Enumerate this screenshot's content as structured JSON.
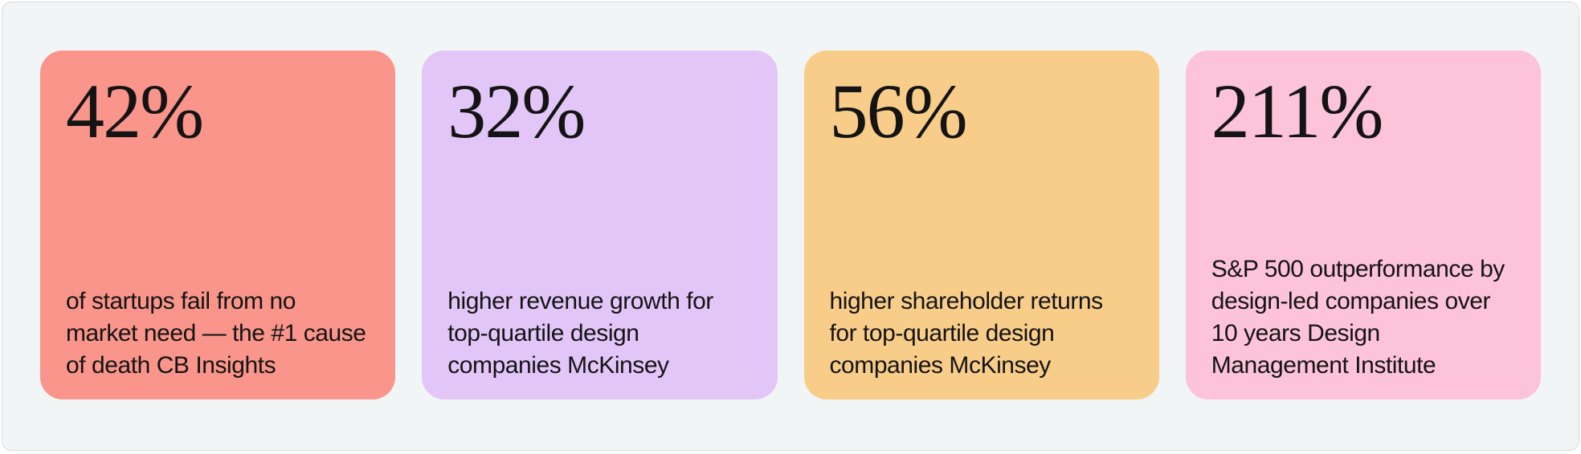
{
  "page": {
    "background": "#ffffff",
    "panel_background": "#f2f5f6",
    "panel_border_color": "#d8dcdd",
    "text_color": "#141414"
  },
  "stats": [
    {
      "value": "42%",
      "description": "of startups fail from no market need — the #1 cause of death CB Insights",
      "background": "#f9958a"
    },
    {
      "value": "32%",
      "description": "higher revenue growth for top-quartile design companies McKinsey",
      "background": "#e3c6f8"
    },
    {
      "value": "56%",
      "description": "higher shareholder returns for top-quartile design companies McKinsey",
      "background": "#f8cd8a"
    },
    {
      "value": "211%",
      "description": "S&P 500 outperformance by design-led companies over 10 years Design Management Institute",
      "background": "#fdc3d8"
    }
  ]
}
